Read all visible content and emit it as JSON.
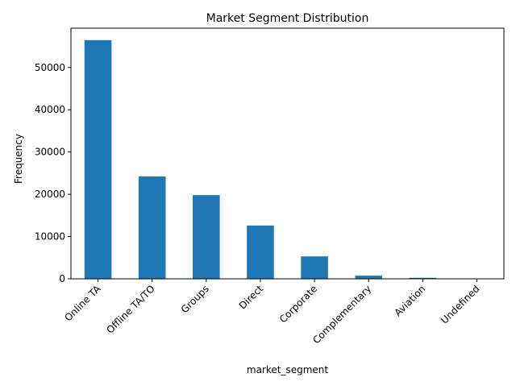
{
  "chart_data": {
    "type": "bar",
    "title": "Market Segment Distribution",
    "xlabel": "market_segment",
    "ylabel": "Frequency",
    "categories": [
      "Online TA",
      "Offline TA/TO",
      "Groups",
      "Direct",
      "Corporate",
      "Complementary",
      "Aviation",
      "Undefined"
    ],
    "values": [
      56477,
      24219,
      19811,
      12606,
      5295,
      743,
      237,
      2
    ],
    "ylim": [
      0,
      59300
    ],
    "yticks": [
      0,
      10000,
      20000,
      30000,
      40000,
      50000
    ],
    "ytick_labels": [
      "0",
      "10000",
      "20000",
      "30000",
      "40000",
      "50000"
    ],
    "grid": false,
    "legend": "none",
    "bar_color": "#1f77b4"
  }
}
